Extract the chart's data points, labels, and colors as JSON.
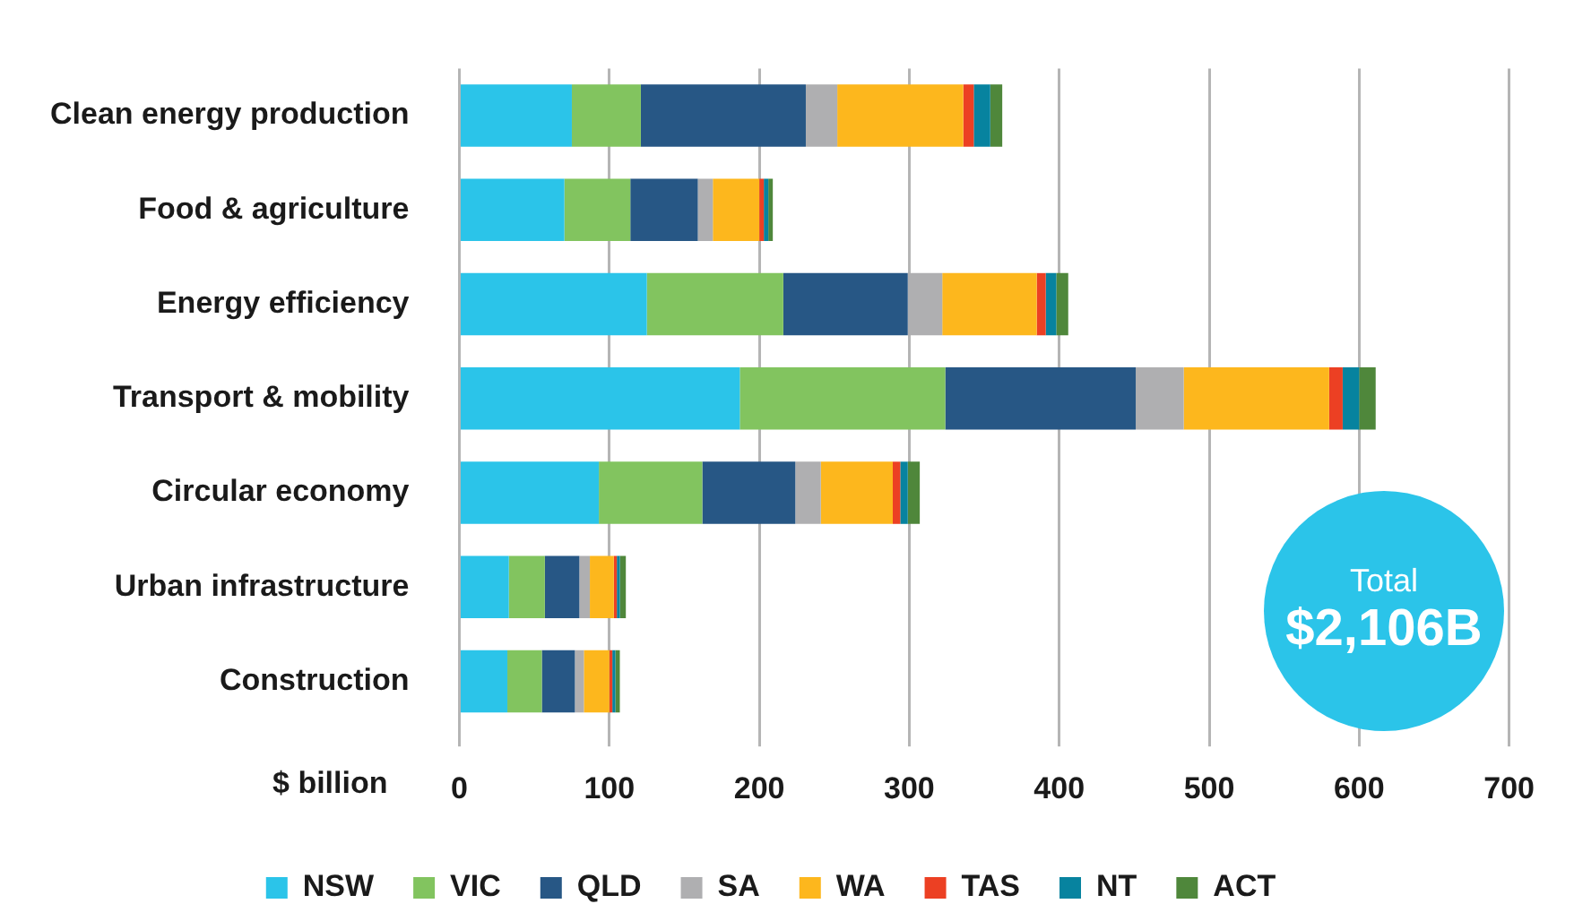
{
  "chart_data": {
    "type": "bar",
    "orientation": "horizontal",
    "stacked": true,
    "xlabel": "$ billion",
    "categories": [
      "Clean energy production",
      "Food & agriculture",
      "Energy efficiency",
      "Transport & mobility",
      "Circular economy",
      "Urban infrastructure",
      "Construction"
    ],
    "series": [
      {
        "name": "NSW",
        "color": "#2bc4e9",
        "values": [
          75,
          70,
          125,
          187,
          93,
          33,
          32
        ]
      },
      {
        "name": "VIC",
        "color": "#82c45f",
        "values": [
          46,
          44,
          91,
          137,
          69,
          24,
          23
        ]
      },
      {
        "name": "QLD",
        "color": "#275785",
        "values": [
          110,
          45,
          83,
          127,
          62,
          23,
          22
        ]
      },
      {
        "name": "SA",
        "color": "#afafb1",
        "values": [
          21,
          10,
          23,
          32,
          17,
          7,
          6
        ]
      },
      {
        "name": "WA",
        "color": "#fdb71d",
        "values": [
          84,
          31,
          63,
          97,
          48,
          16,
          17
        ]
      },
      {
        "name": "TAS",
        "color": "#ec4023",
        "values": [
          7,
          3,
          6,
          9,
          5,
          2,
          2
        ]
      },
      {
        "name": "NT",
        "color": "#07839f",
        "values": [
          11,
          3,
          7,
          11,
          5,
          2,
          2
        ]
      },
      {
        "name": "ACT",
        "color": "#4f873b",
        "values": [
          8,
          3,
          8,
          11,
          8,
          4,
          3
        ]
      }
    ],
    "xlim": [
      0,
      700
    ],
    "xticks": [
      0,
      100,
      200,
      300,
      400,
      500,
      600,
      700
    ],
    "grid": "x",
    "legend": "bottom",
    "annotations": [
      "Total",
      "$2,106B"
    ]
  }
}
